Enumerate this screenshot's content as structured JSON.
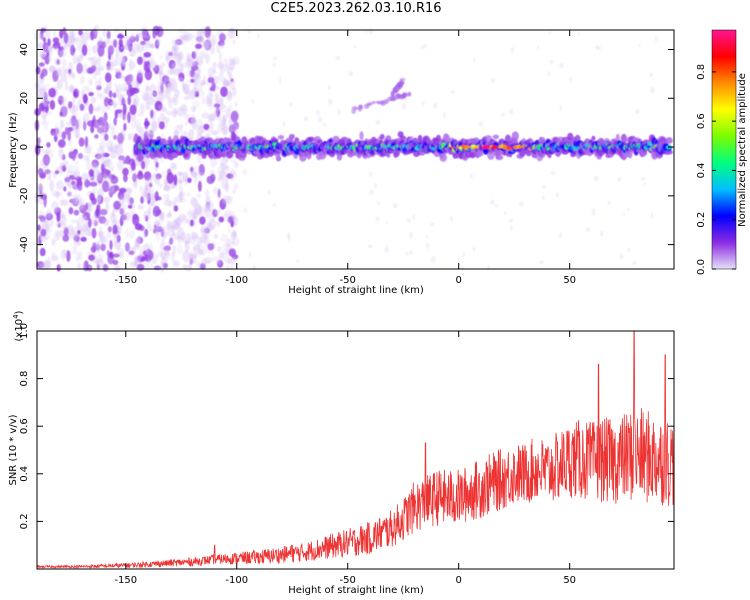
{
  "figure": {
    "title": "C2E5.2023.262.03.10.R16"
  },
  "chart_data": [
    {
      "type": "heatmap",
      "title": "C2E5.2023.262.03.10.R16",
      "xlabel": "Height of straight line (km)",
      "ylabel": "Frequency (Hz)",
      "xlim": [
        -190,
        97
      ],
      "ylim": [
        -50,
        48
      ],
      "xticks": [
        -150,
        -100,
        -50,
        0,
        50
      ],
      "yticks": [
        -40,
        -20,
        0,
        20,
        40
      ],
      "grid": false,
      "colorbar": {
        "label": "Normalized spectral amplitude",
        "range": [
          0.0,
          0.97
        ],
        "ticks": [
          0.0,
          0.2,
          0.4,
          0.6,
          0.8
        ],
        "colormap": [
          "#e8e0f8",
          "#8a2be2",
          "#0000ff",
          "#00bfff",
          "#00ff7f",
          "#7cfc00",
          "#ffff00",
          "#ff8c00",
          "#ff0000",
          "#ff1493"
        ]
      },
      "signal_band": {
        "center_frequency_hz": 0,
        "start_height_km": -145,
        "end_height_km": 95
      },
      "features": [
        {
          "description": "broadband noise",
          "x_range": [
            -190,
            -135
          ],
          "y_range": [
            -50,
            48
          ]
        },
        {
          "description": "narrow streak",
          "x": [
            -48,
            -22
          ],
          "y": [
            15,
            22
          ]
        },
        {
          "description": "narrow streak",
          "x": [
            -30,
            -25
          ],
          "y": [
            22,
            27
          ]
        },
        {
          "description": "peak amplitude",
          "x": 12,
          "y": 0,
          "value": 0.95
        }
      ]
    },
    {
      "type": "line",
      "xlabel": "Height of straight line (km)",
      "ylabel": "SNR (10 * v/v)",
      "y_multiplier_label": "(x10",
      "y_multiplier_exponent": "4",
      "y_multiplier_suffix": ")",
      "xlim": [
        -190,
        97
      ],
      "ylim": [
        0,
        1.0
      ],
      "xticks": [
        -150,
        -100,
        -50,
        0,
        50
      ],
      "yticks": [
        0.2,
        0.4,
        0.6,
        0.8,
        1.0
      ],
      "grid": false,
      "series": [
        {
          "color": "#ee3333",
          "x": [
            -190,
            -170,
            -150,
            -140,
            -130,
            -120,
            -110,
            -100,
            -90,
            -80,
            -70,
            -60,
            -50,
            -40,
            -30,
            -25,
            -20,
            -15,
            -10,
            -5,
            0,
            5,
            10,
            15,
            20,
            25,
            30,
            35,
            40,
            45,
            50,
            55,
            60,
            65,
            70,
            75,
            80,
            85,
            90,
            95
          ],
          "y": [
            0.01,
            0.01,
            0.015,
            0.02,
            0.025,
            0.03,
            0.04,
            0.045,
            0.05,
            0.06,
            0.07,
            0.09,
            0.11,
            0.13,
            0.17,
            0.21,
            0.26,
            0.28,
            0.3,
            0.3,
            0.3,
            0.32,
            0.34,
            0.36,
            0.38,
            0.4,
            0.4,
            0.42,
            0.41,
            0.43,
            0.46,
            0.46,
            0.45,
            0.46,
            0.45,
            0.47,
            0.48,
            0.47,
            0.46,
            0.45
          ],
          "noise_envelope": [
            0.004,
            0.006,
            0.01,
            0.012,
            0.015,
            0.018,
            0.02,
            0.025,
            0.03,
            0.035,
            0.04,
            0.05,
            0.06,
            0.07,
            0.08,
            0.09,
            0.11,
            0.11,
            0.12,
            0.12,
            0.12,
            0.12,
            0.13,
            0.13,
            0.13,
            0.13,
            0.13,
            0.14,
            0.14,
            0.15,
            0.16,
            0.17,
            0.17,
            0.18,
            0.18,
            0.19,
            0.2,
            0.2,
            0.19,
            0.19
          ],
          "peaks": [
            {
              "x": -110,
              "y": 0.1
            },
            {
              "x": -75,
              "y": 0.1
            },
            {
              "x": -15,
              "y": 0.53
            },
            {
              "x": 63,
              "y": 0.86
            },
            {
              "x": 79,
              "y": 1.0
            },
            {
              "x": 93,
              "y": 0.9
            }
          ]
        }
      ]
    }
  ]
}
